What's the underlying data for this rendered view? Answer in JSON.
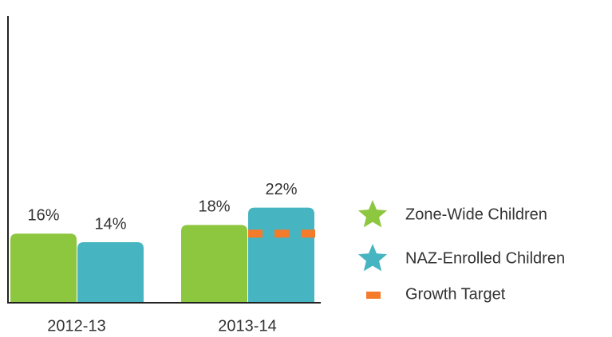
{
  "chart_data": {
    "type": "bar",
    "categories": [
      "2012-13",
      "2013-14"
    ],
    "series": [
      {
        "name": "Zone-Wide Children",
        "color": "#8dc63f",
        "values": [
          16,
          18
        ],
        "value_labels": [
          "16%",
          "18%"
        ]
      },
      {
        "name": "NAZ-Enrolled Children",
        "color": "#46b5c1",
        "values": [
          14,
          22
        ],
        "value_labels": [
          "14%",
          "22%"
        ]
      }
    ],
    "target": {
      "name": "Growth Target",
      "color": "#f47b2a",
      "values": [
        null,
        16
      ]
    },
    "ylim": [
      0,
      66
    ]
  }
}
